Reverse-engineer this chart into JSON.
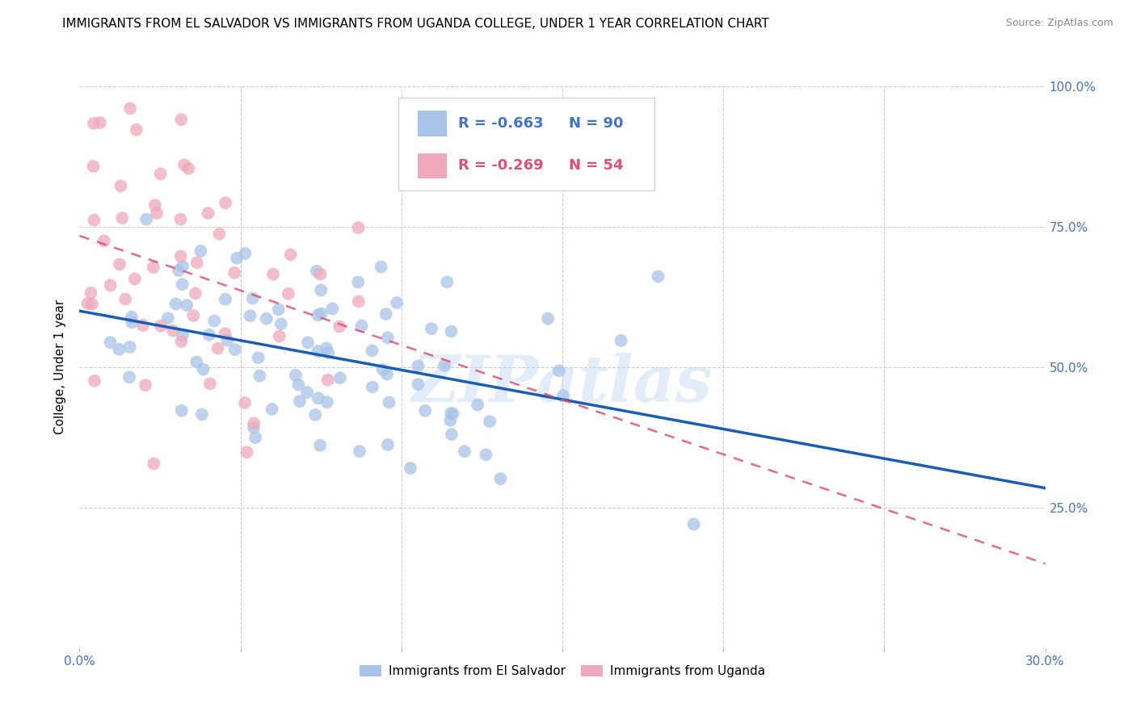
{
  "title": "IMMIGRANTS FROM EL SALVADOR VS IMMIGRANTS FROM UGANDA COLLEGE, UNDER 1 YEAR CORRELATION CHART",
  "source": "Source: ZipAtlas.com",
  "ylabel": "College, Under 1 year",
  "watermark": "ZIPatlas",
  "blue_R": -0.663,
  "blue_N": 90,
  "pink_R": -0.269,
  "pink_N": 54,
  "x_min": 0.0,
  "x_max": 0.3,
  "y_min": 0.0,
  "y_max": 1.0,
  "blue_line_color": "#1a5db5",
  "pink_line_color": "#e05070",
  "blue_scatter_color": "#a8c4e8",
  "pink_scatter_color": "#f0a8bc",
  "background_color": "#ffffff",
  "title_fontsize": 11,
  "source_fontsize": 9,
  "ylabel_fontsize": 11,
  "axis_label_color_blue": "#4472c4",
  "axis_label_color_pink": "#e05070",
  "legend_blue_R": "R = -0.663",
  "legend_blue_N": "N = 90",
  "legend_pink_R": "R = -0.269",
  "legend_pink_N": "N = 54",
  "label_el_salvador": "Immigrants from El Salvador",
  "label_uganda": "Immigrants from Uganda"
}
